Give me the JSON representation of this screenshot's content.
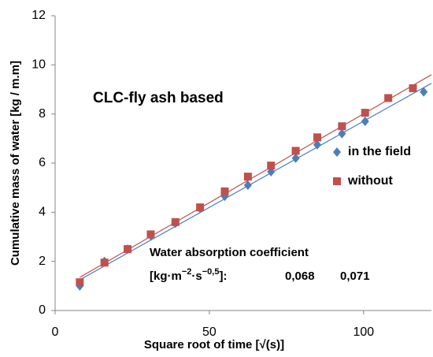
{
  "chart_data": {
    "type": "scatter",
    "xlabel": "Square root of time [√(s)]",
    "ylabel": "Cumulative mass of water [kg / m.m]",
    "xlim": [
      0,
      122
    ],
    "ylim": [
      0,
      12
    ],
    "xticks": [
      0,
      50,
      100
    ],
    "yticks": [
      0,
      2,
      4,
      6,
      8,
      10,
      12
    ],
    "series": [
      {
        "name": "in the field",
        "color": "#4a7ebb",
        "marker": "diamond",
        "x": [
          8,
          16,
          23.5,
          31,
          39,
          47,
          55,
          62.5,
          70,
          78,
          85,
          93,
          100.5,
          119.5
        ],
        "values": [
          1.0,
          2.0,
          2.5,
          3.05,
          3.55,
          4.15,
          4.65,
          5.1,
          5.65,
          6.2,
          6.75,
          7.2,
          7.7,
          8.9
        ]
      },
      {
        "name": "without",
        "color": "#c0504d",
        "marker": "square",
        "x": [
          8,
          16,
          23.5,
          31,
          39,
          47,
          55,
          62.5,
          70,
          78,
          85,
          93,
          100.5,
          108,
          116
        ],
        "values": [
          1.15,
          1.95,
          2.5,
          3.1,
          3.6,
          4.2,
          4.85,
          5.45,
          5.9,
          6.5,
          7.05,
          7.5,
          8.05,
          8.65,
          9.05
        ]
      }
    ],
    "trendlines": [
      {
        "color": "#4a7ebb",
        "x": [
          8,
          122
        ],
        "values": [
          1.25,
          9.25
        ]
      },
      {
        "color": "#c0504d",
        "x": [
          8,
          122
        ],
        "values": [
          1.35,
          9.6
        ]
      }
    ],
    "annotations": {
      "title": "CLC-fly ash based",
      "coefficient_label": "Water absorption  coefficient",
      "unit": {
        "base1": "[kg·m",
        "exp1": "−2",
        "base2": "·s",
        "exp2": "−0,5",
        "tail": "]:"
      },
      "coefficient_field": "0,068",
      "coefficient_without": "0,071"
    }
  }
}
